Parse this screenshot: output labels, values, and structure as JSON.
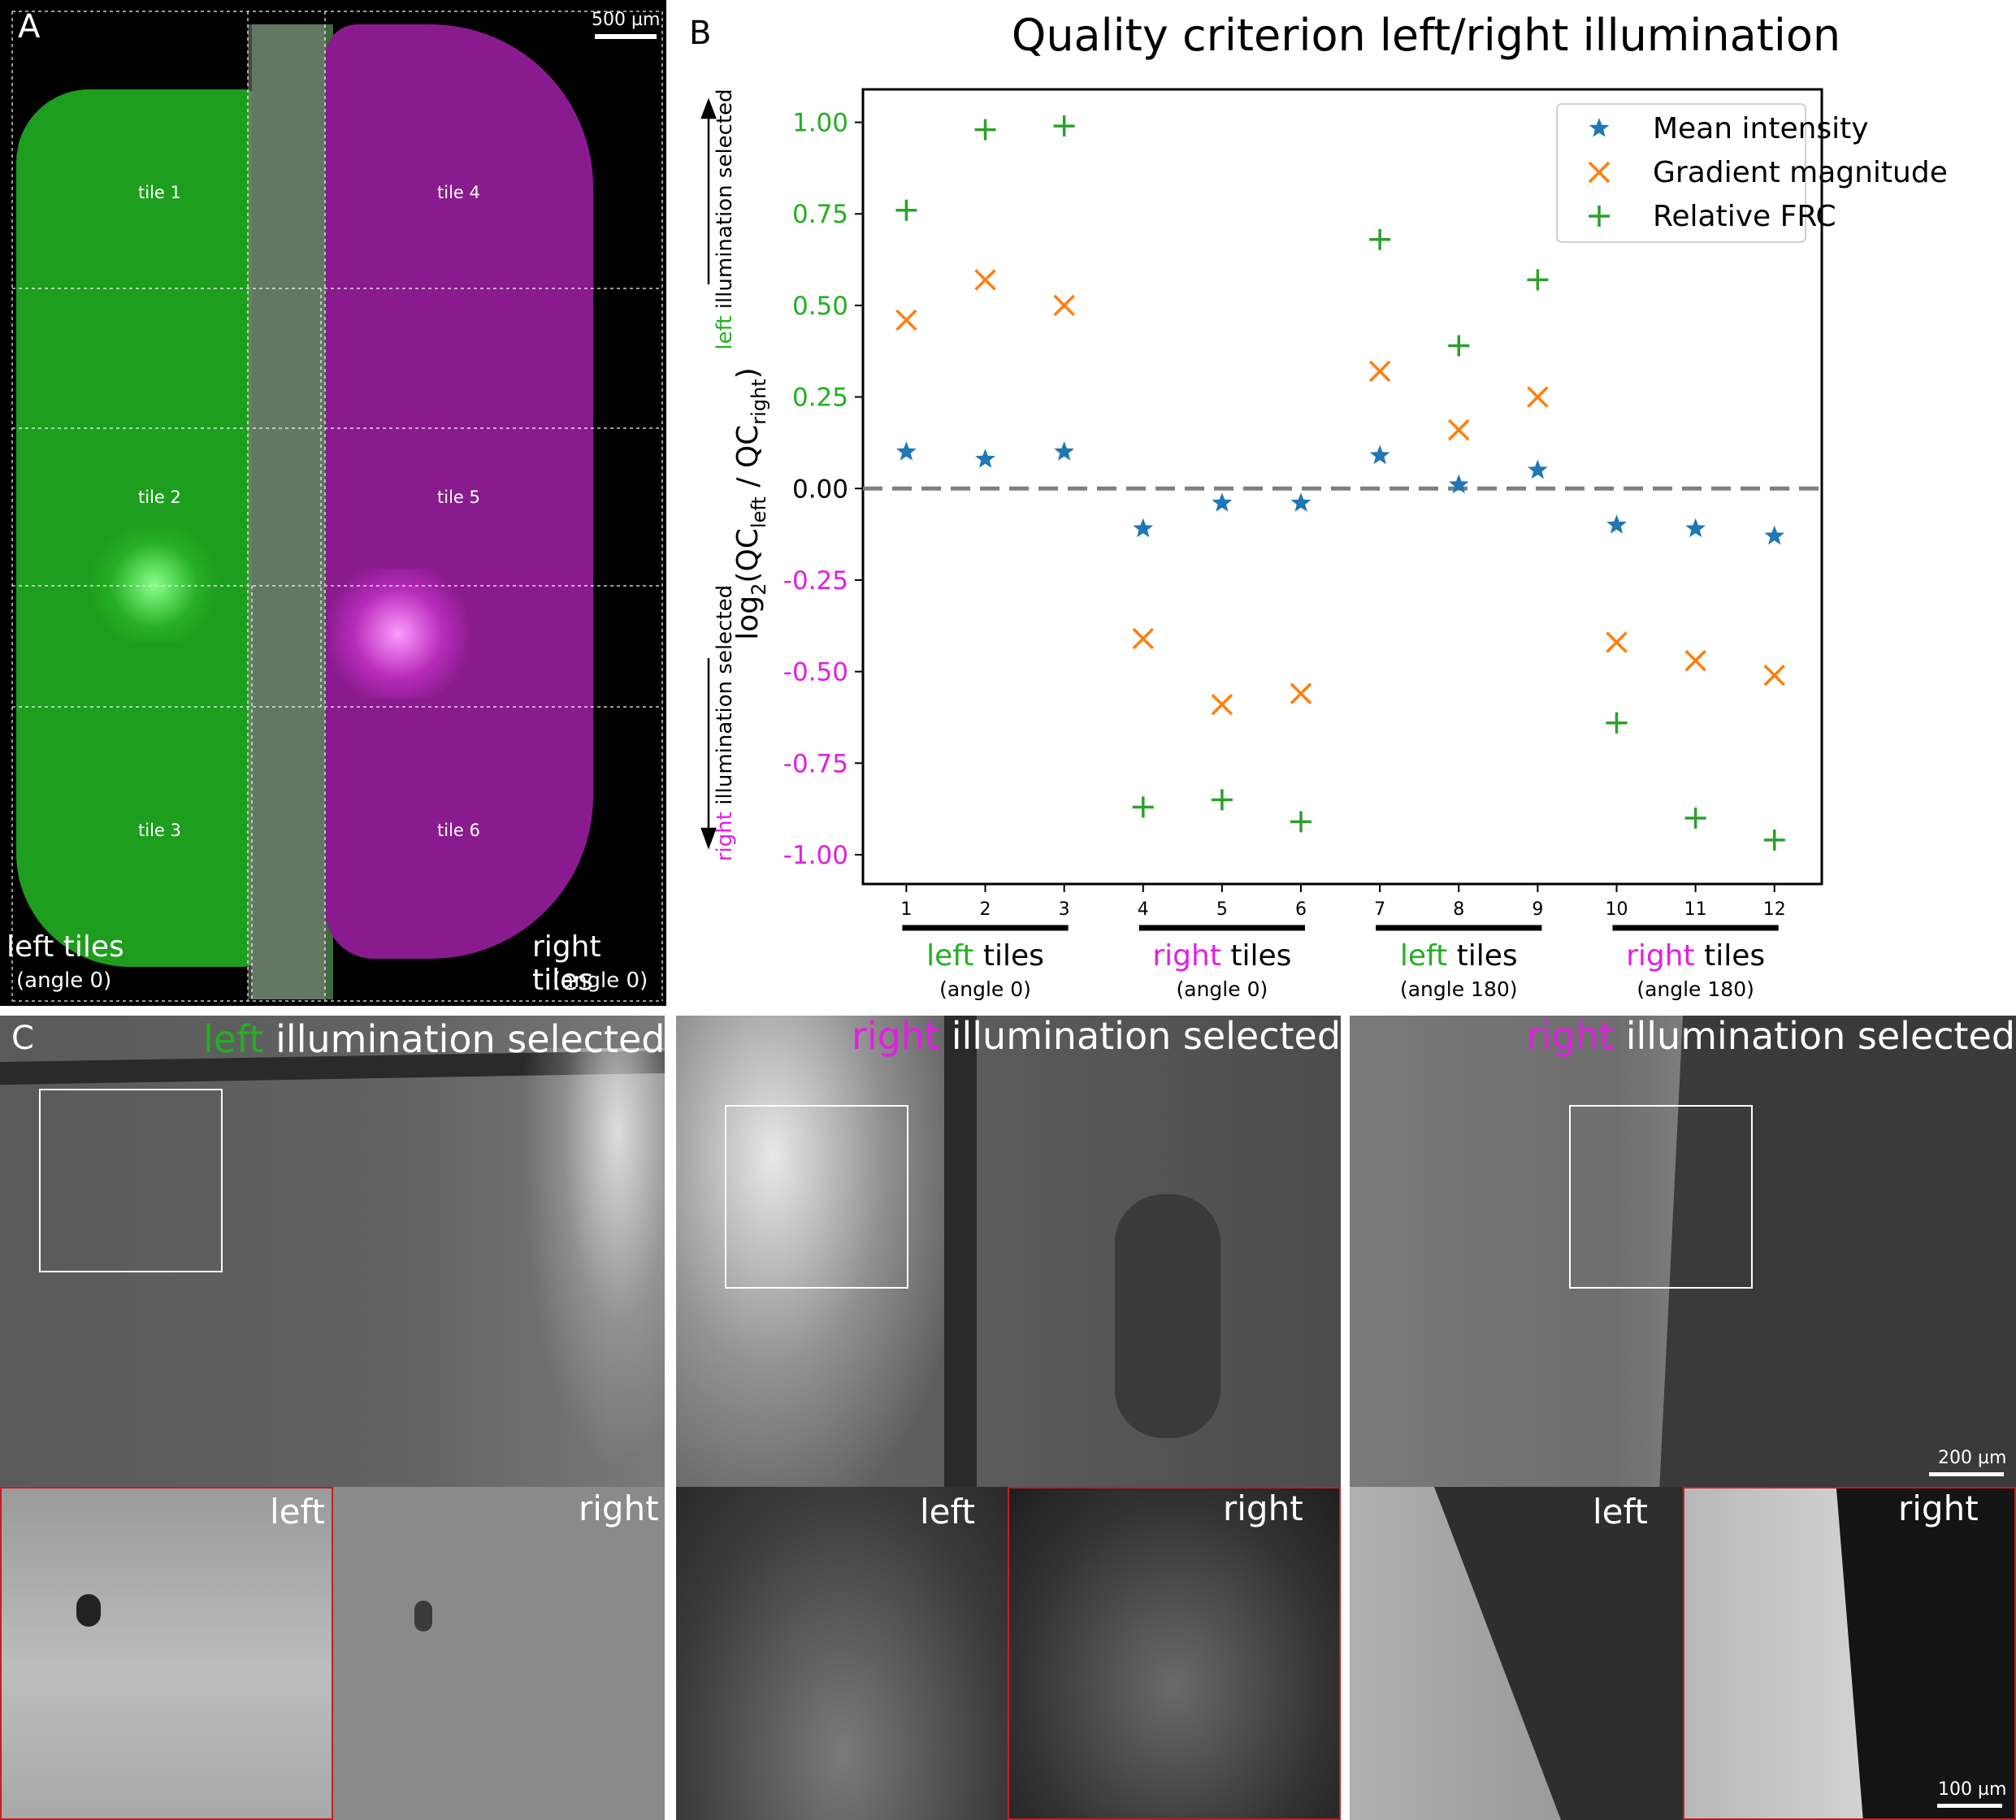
{
  "panel_a": {
    "letter": "A",
    "scalebar": "500 µm",
    "tiles": [
      "tile 1",
      "tile 2",
      "tile 3",
      "tile 4",
      "tile 5",
      "tile 6"
    ],
    "left_label": "left tiles",
    "left_angle": "(angle 0)",
    "right_label": "right tiles",
    "right_angle": "(angle 0)"
  },
  "panel_b": {
    "letter": "B",
    "ylabel_left_word": "left",
    "ylabel_left_rest": " illumination selected",
    "ylabel_right_word": "right",
    "ylabel_right_rest": " illumination selected",
    "ylabel_math": "log₂(QC",
    "groups": [
      {
        "word": "left",
        "rest": " tiles",
        "angle": "(angle 0)",
        "color": "green"
      },
      {
        "word": "right",
        "rest": " tiles",
        "angle": "(angle 0)",
        "color": "magenta"
      },
      {
        "word": "left",
        "rest": " tiles",
        "angle": "(angle 180)",
        "color": "green"
      },
      {
        "word": "right",
        "rest": " tiles",
        "angle": "(angle 180)",
        "color": "magenta"
      }
    ]
  },
  "panel_c": {
    "letter": "C",
    "titles": [
      {
        "word": "left",
        "rest": " illumination selected",
        "color": "green"
      },
      {
        "word": "right",
        "rest": " illumination selected",
        "color": "magenta"
      },
      {
        "word": "right",
        "rest": " illumination selected",
        "color": "magenta"
      }
    ],
    "sub_left": "left",
    "sub_right": "right",
    "scalebar_top": "200 µm",
    "scalebar_bottom": "100 µm"
  },
  "colors": {
    "green": "#22b022",
    "magenta": "#e020e0",
    "mean": "#1f77b4",
    "gradient": "#ff7f0e",
    "frc": "#2ca02c"
  },
  "chart_data": {
    "type": "scatter",
    "title": "Quality criterion left/right illumination",
    "x": [
      1,
      2,
      3,
      4,
      5,
      6,
      7,
      8,
      9,
      10,
      11,
      12
    ],
    "series": [
      {
        "name": "Mean intensity",
        "marker": "star",
        "values": [
          0.1,
          0.08,
          0.1,
          -0.11,
          -0.04,
          -0.04,
          0.09,
          0.01,
          0.05,
          -0.1,
          -0.11,
          -0.13
        ]
      },
      {
        "name": "Gradient magnitude",
        "marker": "x",
        "values": [
          0.46,
          0.57,
          0.5,
          -0.41,
          -0.59,
          -0.56,
          0.32,
          0.16,
          0.25,
          -0.42,
          -0.47,
          -0.51
        ]
      },
      {
        "name": "Relative FRC",
        "marker": "plus",
        "values": [
          0.76,
          0.98,
          0.99,
          -0.87,
          -0.85,
          -0.91,
          0.68,
          0.39,
          0.57,
          -0.64,
          -0.9,
          -0.96
        ]
      }
    ],
    "xticks": [
      "1",
      "2",
      "3",
      "4",
      "5",
      "6",
      "7",
      "8",
      "9",
      "10",
      "11",
      "12"
    ],
    "yticks": [
      "1.00",
      "0.75",
      "0.50",
      "0.25",
      "0.00",
      "-0.25",
      "-0.50",
      "-0.75",
      "-1.00"
    ],
    "ytick_values": [
      1.0,
      0.75,
      0.5,
      0.25,
      0.0,
      -0.25,
      -0.5,
      -0.75,
      -1.0
    ],
    "ylim": [
      -1.08,
      1.09
    ],
    "xlim": [
      0.45,
      12.6
    ],
    "reference_line": 0.0,
    "legend_position": "top-right"
  }
}
